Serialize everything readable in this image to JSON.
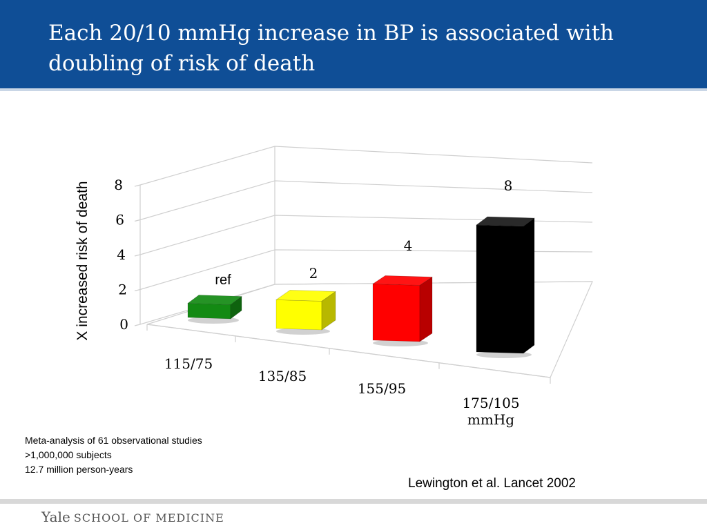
{
  "header": {
    "title": "Each 20/10 mmHg increase in BP is associated with doubling of risk of death",
    "background_color": "#0f4e96"
  },
  "chart_data": {
    "type": "bar",
    "title": "",
    "ylabel": "X increased risk of death",
    "xlabel": "",
    "categories": [
      "115/75",
      "135/85",
      "155/95",
      "175/105 mmHg"
    ],
    "values": [
      1,
      2,
      4,
      8
    ],
    "data_labels": [
      "ref",
      "2",
      "4",
      "8"
    ],
    "bar_colors": [
      "#138a13",
      "#ffff00",
      "#ff0000",
      "#000000"
    ],
    "yticks": [
      "0",
      "2",
      "4",
      "6",
      "8"
    ],
    "ylim": [
      0,
      8
    ],
    "grid": true,
    "legend": "none",
    "style": "3d"
  },
  "notes": [
    "Meta-analysis of 61 observational studies",
    ">1,000,000 subjects",
    "12.7 million person-years"
  ],
  "citation": "Lewington et al. Lancet 2002",
  "footer": {
    "logo_main": "Yale",
    "logo_sub": "SCHOOL OF MEDICINE"
  }
}
